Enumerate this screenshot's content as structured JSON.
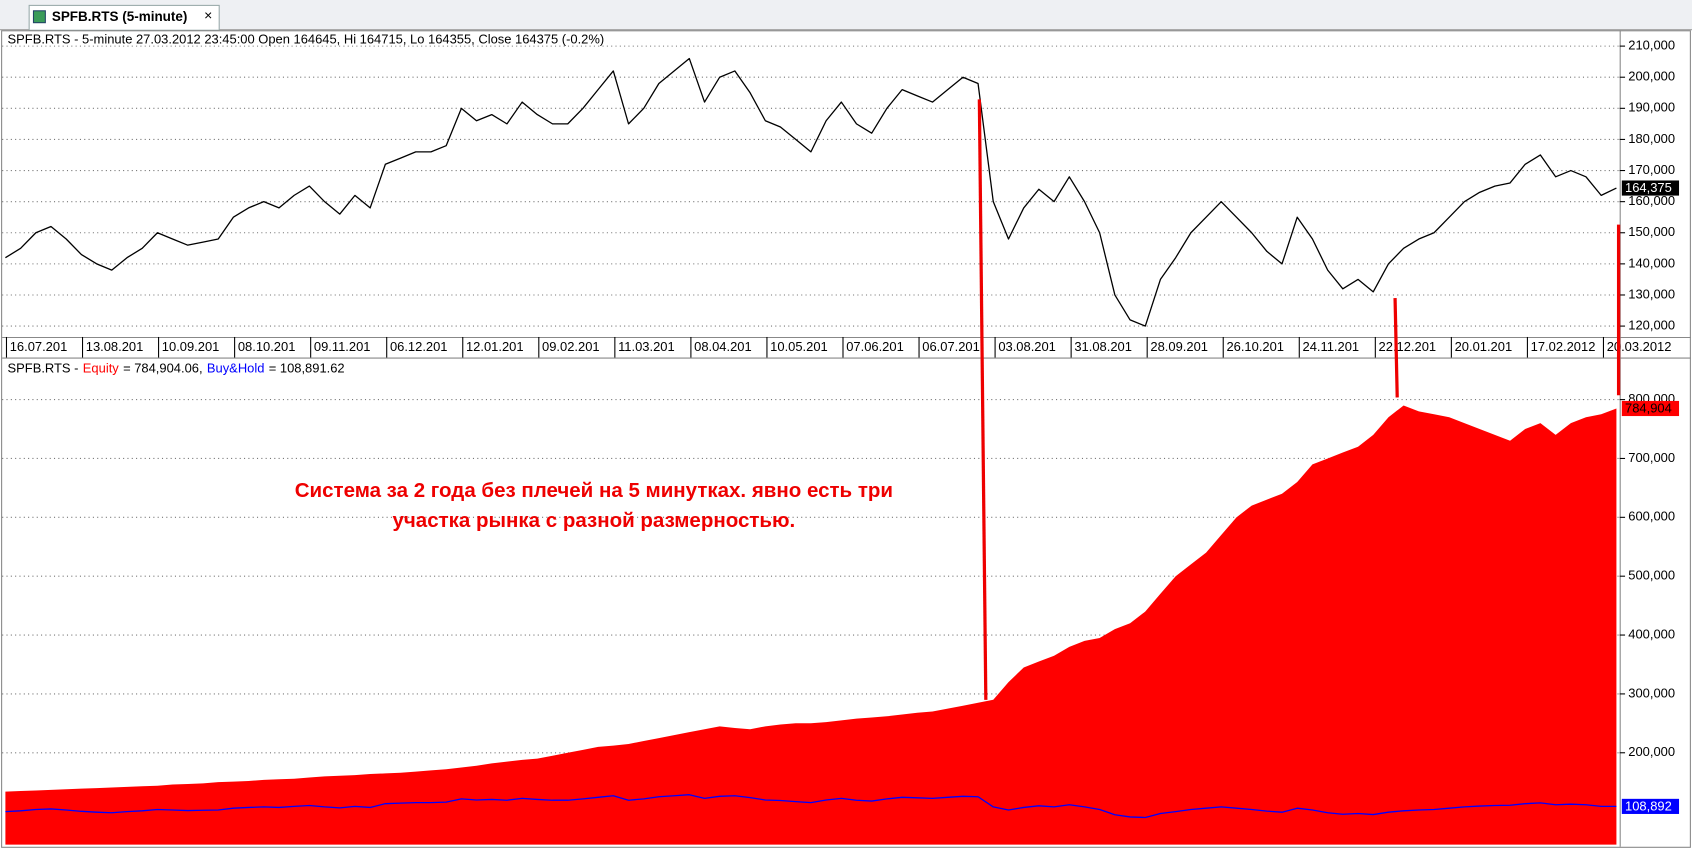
{
  "tab_title": "SPFB.RTS (5-minute)",
  "annotation": [
    "Система за 2 года без плечей на 5 минутках. явно есть три",
    "участка рынка с разной размерностью."
  ],
  "chart_data": [
    {
      "type": "line",
      "title": "SPFB.RTS - 5-minute 27.03.2012 23:45:00 Open 164645, Hi 164715, Lo 164355, Close 164375 (-0.2%)",
      "x_labels": [
        "16.07.201",
        "13.08.201",
        "10.09.201",
        "08.10.201",
        "09.11.201",
        "06.12.201",
        "12.01.201",
        "09.02.201",
        "11.03.201",
        "08.04.201",
        "10.05.201",
        "07.06.201",
        "06.07.201",
        "03.08.201",
        "31.08.201",
        "28.09.201",
        "26.10.201",
        "24.11.201",
        "22.12.201",
        "20.01.201",
        "17.02.2012",
        "20.03.2012"
      ],
      "ylim": [
        116500,
        215100
      ],
      "yticks": [
        {
          "value": 120000,
          "label": "120,000"
        },
        {
          "value": 130000,
          "label": "130,000"
        },
        {
          "value": 140000,
          "label": "140,000"
        },
        {
          "value": 150000,
          "label": "150,000"
        },
        {
          "value": 160000,
          "label": "160,000"
        },
        {
          "value": 170000,
          "label": "170,000"
        },
        {
          "value": 180000,
          "label": "180,000"
        },
        {
          "value": 190000,
          "label": "190,000"
        },
        {
          "value": 200000,
          "label": "200,000"
        },
        {
          "value": 210000,
          "label": "210,000"
        }
      ],
      "grid": true,
      "series": [
        {
          "name": "SPFB.RTS",
          "color": "#000000",
          "type": "line",
          "last_label": "164,375",
          "values": [
            142000,
            145000,
            150000,
            152000,
            148000,
            143000,
            140000,
            138000,
            142000,
            145000,
            150000,
            148000,
            146000,
            147000,
            148000,
            155000,
            158000,
            160000,
            158000,
            162000,
            165000,
            160000,
            156000,
            162000,
            158000,
            172000,
            174000,
            176000,
            176000,
            178000,
            190000,
            186000,
            188000,
            185000,
            192000,
            188000,
            185000,
            185000,
            190000,
            196000,
            202000,
            185000,
            190000,
            198000,
            202000,
            206000,
            192000,
            200000,
            202000,
            195000,
            186000,
            184000,
            180000,
            176000,
            186000,
            192000,
            185000,
            182000,
            190000,
            196000,
            194000,
            192000,
            196000,
            200000,
            198000,
            160000,
            148000,
            158000,
            164000,
            160000,
            168000,
            160000,
            150000,
            130000,
            122000,
            120000,
            135000,
            142000,
            150000,
            155000,
            160000,
            155000,
            150000,
            144000,
            140000,
            155000,
            148000,
            138000,
            132000,
            135000,
            131000,
            140000,
            145000,
            148000,
            150000,
            155000,
            160000,
            163000,
            165000,
            166000,
            172000,
            175000,
            168000,
            170000,
            168000,
            162000,
            164375
          ]
        }
      ]
    },
    {
      "type": "area",
      "title": "SPFB.RTS -",
      "ylim": [
        44000,
        833000
      ],
      "yticks": [
        {
          "value": 200000,
          "label": "200,000"
        },
        {
          "value": 300000,
          "label": "300,000"
        },
        {
          "value": 400000,
          "label": "400,000"
        },
        {
          "value": 500000,
          "label": "500,000"
        },
        {
          "value": 600000,
          "label": "600,000"
        },
        {
          "value": 700000,
          "label": "700,000"
        },
        {
          "value": 800000,
          "label": "800,000"
        }
      ],
      "grid": true,
      "series": [
        {
          "name": "Equity",
          "color": "#ff0000",
          "type": "area",
          "legend_value": "= 784,904.06,",
          "last_label": "784,904",
          "values": [
            134000,
            135000,
            136000,
            137000,
            138000,
            139000,
            140000,
            141000,
            142000,
            143000,
            144000,
            146000,
            147000,
            148000,
            150000,
            151000,
            152000,
            154000,
            155000,
            156000,
            158000,
            160000,
            161000,
            162000,
            164000,
            165000,
            166000,
            168000,
            170000,
            172000,
            175000,
            178000,
            182000,
            185000,
            188000,
            190000,
            195000,
            200000,
            205000,
            210000,
            212000,
            215000,
            220000,
            225000,
            230000,
            235000,
            240000,
            245000,
            242000,
            240000,
            245000,
            248000,
            250000,
            250000,
            252000,
            255000,
            258000,
            260000,
            262000,
            265000,
            268000,
            270000,
            275000,
            280000,
            285000,
            290000,
            320000,
            345000,
            355000,
            365000,
            380000,
            390000,
            395000,
            410000,
            420000,
            440000,
            470000,
            500000,
            520000,
            540000,
            570000,
            600000,
            620000,
            630000,
            640000,
            660000,
            690000,
            700000,
            710000,
            720000,
            740000,
            770000,
            790000,
            780000,
            775000,
            770000,
            760000,
            750000,
            740000,
            730000,
            750000,
            760000,
            740000,
            760000,
            770000,
            775000,
            784904
          ]
        },
        {
          "name": "Buy&Hold",
          "color": "#0000ff",
          "type": "line",
          "legend_value": "= 108,891.62",
          "last_label": "108,892",
          "values": [
            100000,
            101400,
            103600,
            104500,
            102700,
            100500,
            99100,
            98200,
            100000,
            101400,
            103600,
            102700,
            101800,
            102300,
            102700,
            105900,
            107200,
            108100,
            107200,
            109000,
            110400,
            108100,
            106300,
            109000,
            107200,
            113500,
            114400,
            115300,
            115300,
            116200,
            121600,
            119800,
            120700,
            119400,
            122500,
            120700,
            119400,
            119400,
            121600,
            124300,
            127000,
            119400,
            121600,
            125200,
            127000,
            128800,
            122500,
            126100,
            127000,
            123900,
            119800,
            118900,
            117100,
            115300,
            119800,
            122500,
            119400,
            118000,
            121600,
            124300,
            123400,
            122500,
            124300,
            126100,
            125200,
            108100,
            102700,
            107200,
            109900,
            108100,
            111700,
            108100,
            103600,
            94600,
            91000,
            90100,
            96900,
            100000,
            103600,
            105900,
            108100,
            105900,
            103600,
            100900,
            99100,
            105900,
            102700,
            98200,
            95500,
            96900,
            95000,
            99100,
            101400,
            102700,
            103600,
            105900,
            108100,
            109500,
            110400,
            110800,
            113500,
            114900,
            111700,
            112600,
            111700,
            109000,
            108892
          ]
        }
      ]
    }
  ]
}
